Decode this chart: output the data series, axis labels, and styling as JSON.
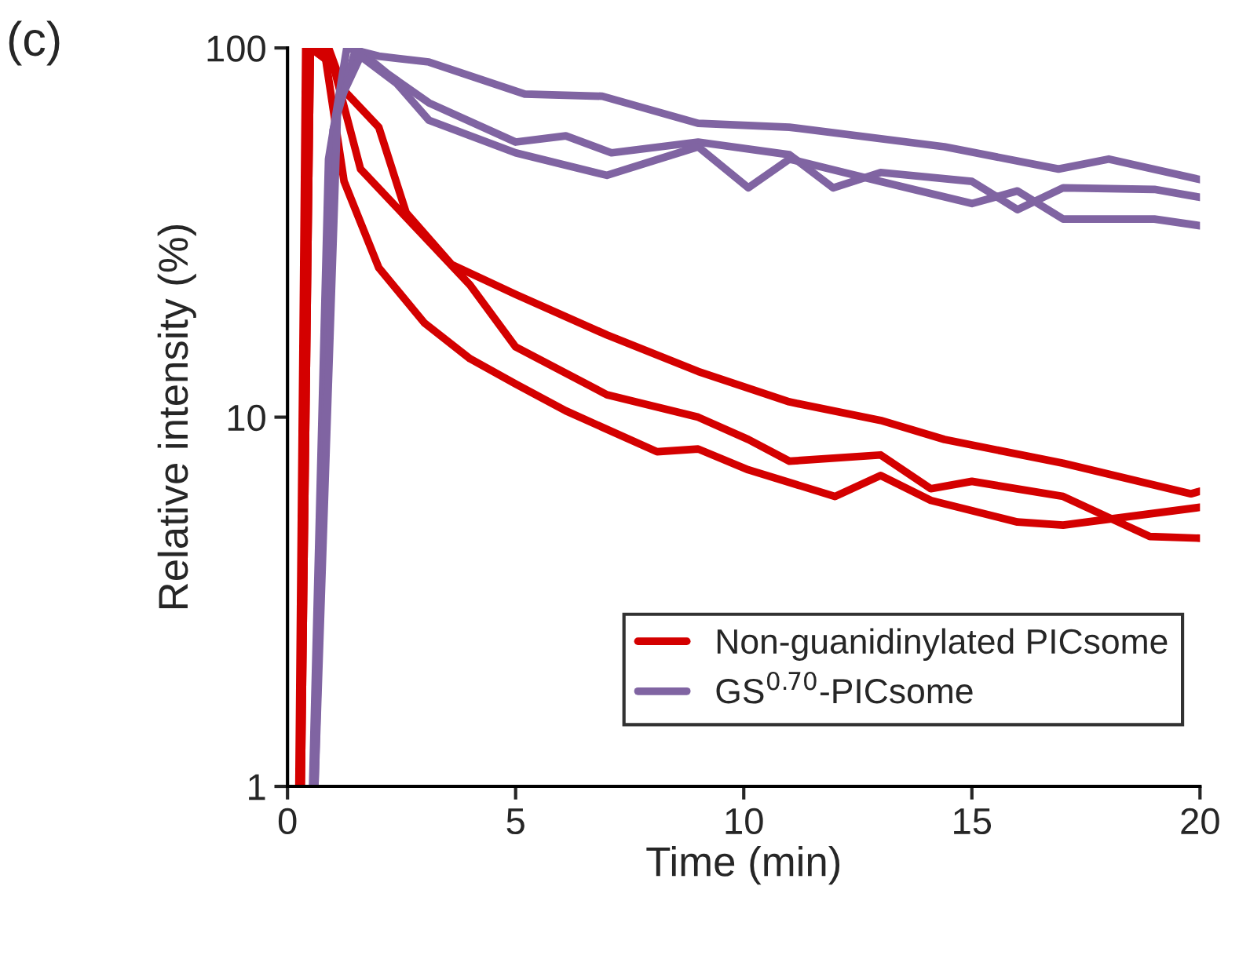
{
  "chart_data": {
    "type": "line",
    "xlabel": "Time (min)",
    "ylabel": "Relative intensity (%)",
    "annotations": [
      "(c)"
    ],
    "log": true,
    "xlim": [
      0,
      20
    ],
    "ylim": [
      1,
      100
    ],
    "xticks": [
      0,
      5,
      10,
      15,
      20
    ],
    "yticks": [
      1,
      10,
      100
    ],
    "grid": false,
    "legend": "bottom",
    "marker": "none",
    "line_style": "solid",
    "series": [
      {
        "name": "Non-guanidinylated PICsome",
        "color": "#d40000",
        "x": [
          0.25,
          0.4,
          0.9,
          1.24,
          2.0,
          2.6,
          3.6,
          5,
          7,
          9,
          11,
          13,
          14.4,
          17,
          19.8,
          20
        ],
        "values": [
          1,
          100,
          100,
          76.7,
          61,
          35.8,
          25.9,
          21.5,
          16.7,
          13.3,
          11.0,
          9.8,
          8.7,
          7.5,
          6.2,
          6.3
        ]
      },
      {
        "color": "#d40000",
        "x": [
          0.3,
          0.5,
          1.0,
          1.6,
          4.0,
          5,
          7,
          9,
          10.1,
          11,
          13,
          14.1,
          15,
          17,
          18.9,
          20
        ],
        "values": [
          1,
          100,
          90,
          47,
          22.8,
          15.5,
          11.5,
          10,
          8.7,
          7.6,
          7.9,
          6.4,
          6.7,
          6.1,
          4.75,
          4.7
        ]
      },
      {
        "color": "#d40000",
        "x": [
          0.3,
          0.5,
          0.8,
          1.24,
          2,
          3,
          4,
          5,
          6.1,
          8.1,
          9,
          10.1,
          12,
          13,
          14.1,
          16,
          17,
          20
        ],
        "values": [
          1,
          100,
          100,
          43.5,
          25.4,
          18,
          14.4,
          12.3,
          10.4,
          8.06,
          8.2,
          7.2,
          6.1,
          6.95,
          5.95,
          5.2,
          5.1,
          5.7
        ]
      },
      {
        "name": "GS$^{0.70}$-PICsome",
        "color": "#8064a2",
        "x": [
          0.55,
          0.9,
          1.3,
          2,
          3.1,
          5.2,
          6.9,
          9,
          11,
          14.4,
          16.9,
          18,
          20
        ],
        "values": [
          1,
          50,
          100,
          95,
          91.6,
          75,
          74,
          62.5,
          61,
          54,
          47,
          50,
          44
        ]
      },
      {
        "color": "#8064a2",
        "x": [
          0.6,
          1.0,
          1.5,
          2.2,
          3.1,
          5,
          6.1,
          7.1,
          9,
          11,
          11.96,
          13,
          15,
          16,
          17,
          19,
          20
        ],
        "values": [
          1,
          60,
          100,
          85,
          71,
          55.6,
          57.8,
          52,
          55.6,
          51.4,
          41.8,
          46,
          43.5,
          36.5,
          41.8,
          41.4,
          39.4
        ]
      },
      {
        "color": "#8064a2",
        "x": [
          0.6,
          1.1,
          1.6,
          2.4,
          3.1,
          5,
          7,
          9,
          10.1,
          11,
          13,
          15,
          16,
          17,
          19,
          20
        ],
        "values": [
          1,
          70,
          95,
          80,
          63.7,
          52,
          45.2,
          54,
          41.8,
          50,
          43.5,
          37.9,
          41,
          34.4,
          34.4,
          33
        ]
      }
    ]
  }
}
